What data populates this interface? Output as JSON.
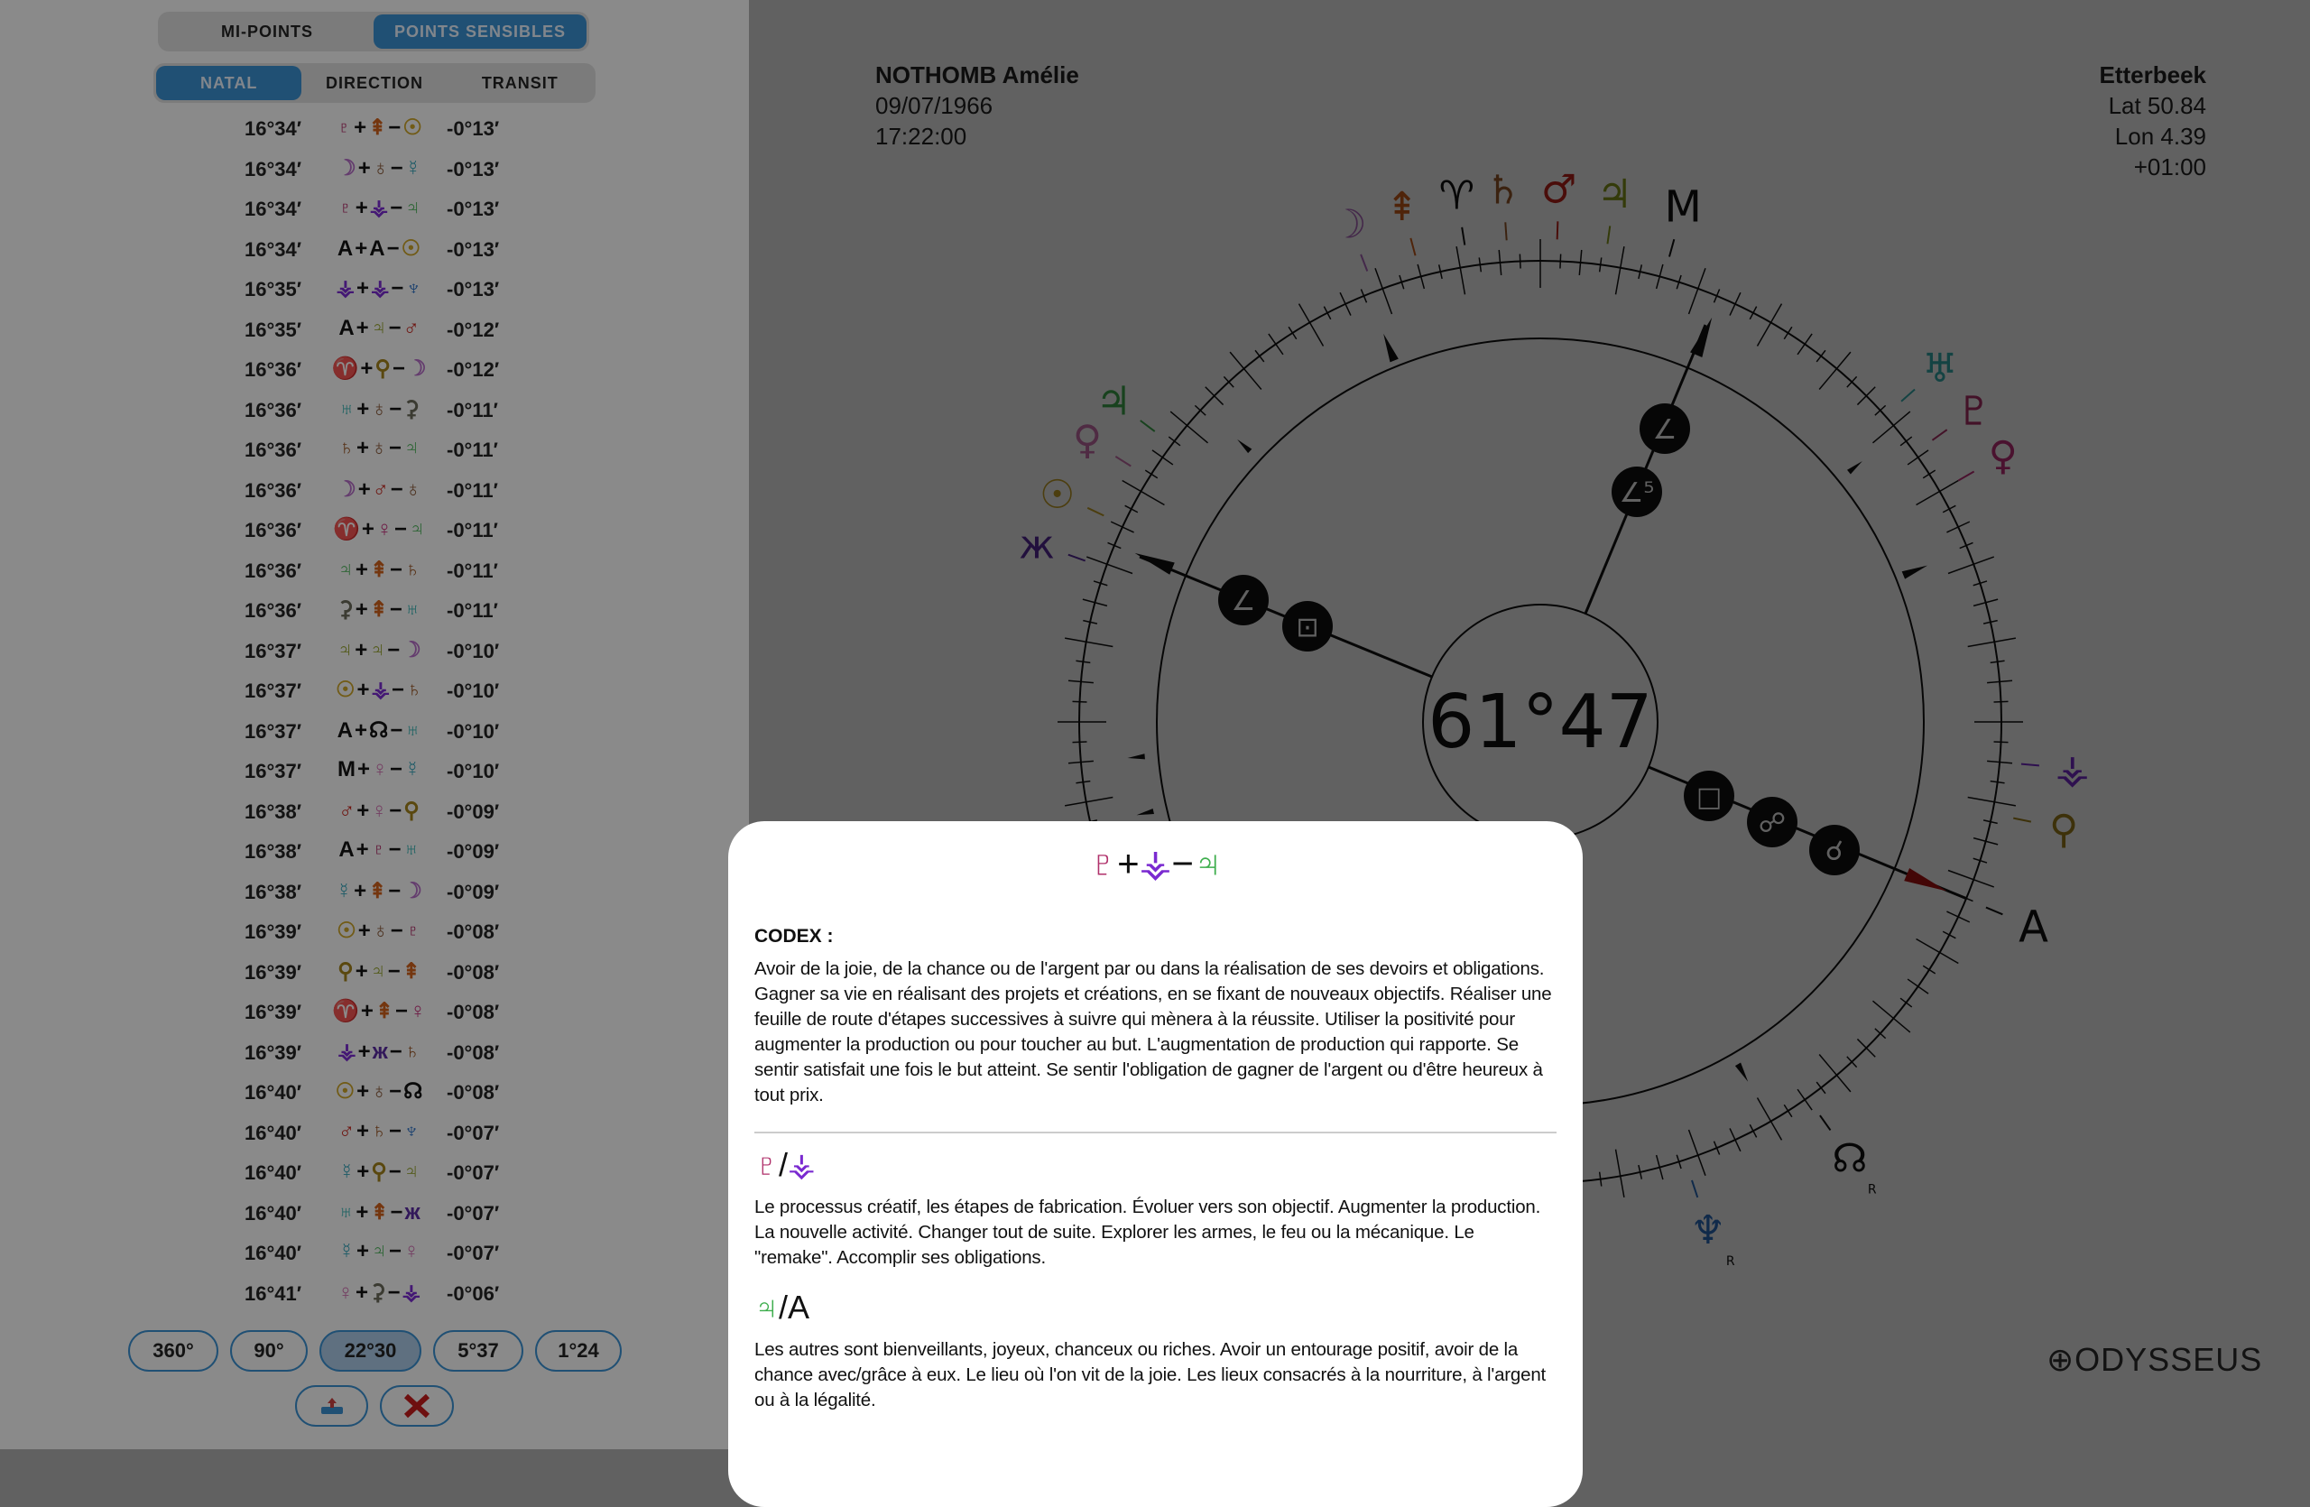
{
  "glyphs": {
    "sun": {
      "c": "☉",
      "color": "#c9a227"
    },
    "moon": {
      "c": "☽",
      "color": "#b36bc4"
    },
    "mercury": {
      "c": "☿",
      "color": "#35a3b8"
    },
    "venus": {
      "c": "♀",
      "color": "#c4307c"
    },
    "mars": {
      "c": "♂",
      "color": "#c4231b"
    },
    "jupiter": {
      "c": "♃",
      "color": "#3fae4e"
    },
    "saturn": {
      "c": "♄",
      "color": "#9c5a2a"
    },
    "uranus": {
      "c": "♅",
      "color": "#35b0b0"
    },
    "neptune": {
      "c": "♆",
      "color": "#2a6fc4"
    },
    "pluto": {
      "c": "♇",
      "color": "#b0306a"
    },
    "node": {
      "c": "☊",
      "color": "#111111"
    },
    "asc": {
      "c": "A",
      "color": "#111111"
    },
    "mc": {
      "c": "M",
      "color": "#111111"
    },
    "cupido": {
      "c": "ж",
      "color": "#5a2aa0"
    },
    "hades": {
      "c": "♁",
      "color": "#8a5a3a"
    },
    "zeus": {
      "c": "⇞",
      "color": "#d0601a"
    },
    "kronos": {
      "c": "♃",
      "color": "#8a9a1a"
    },
    "apollon": {
      "c": "⚳",
      "color": "#6a6a5a"
    },
    "admetos": {
      "c": "♀",
      "color": "#d070b0"
    },
    "vulkanus": {
      "c": "♈",
      "color": "#111111"
    },
    "poseidon": {
      "c": "⚶",
      "color": "#7a2ad0"
    },
    "transpluto": {
      "c": "⚲",
      "color": "#a0801a"
    }
  },
  "tabs_top": [
    "MI-POINTS",
    "POINTS SENSIBLES"
  ],
  "tabs_mode": [
    "NATAL",
    "DIRECTION",
    "TRANSIT"
  ],
  "rows": [
    {
      "pos": "16°34′",
      "a": "pluto",
      "b": "zeus",
      "c": "sun",
      "diff": "-0°13′"
    },
    {
      "pos": "16°34′",
      "a": "moon",
      "b": "hades",
      "c": "mercury",
      "diff": "-0°13′"
    },
    {
      "pos": "16°34′",
      "a": "pluto",
      "b": "poseidon",
      "c": "jupiter",
      "diff": "-0°13′"
    },
    {
      "pos": "16°34′",
      "a": "asc",
      "b": "asc",
      "c": "sun",
      "diff": "-0°13′"
    },
    {
      "pos": "16°35′",
      "a": "poseidon",
      "b": "poseidon",
      "c": "neptune",
      "diff": "-0°13′"
    },
    {
      "pos": "16°35′",
      "a": "asc",
      "b": "kronos",
      "c": "mars",
      "diff": "-0°12′"
    },
    {
      "pos": "16°36′",
      "a": "vulkanus",
      "b": "transpluto",
      "c": "moon",
      "diff": "-0°12′"
    },
    {
      "pos": "16°36′",
      "a": "uranus",
      "b": "hades",
      "c": "apollon",
      "diff": "-0°11′"
    },
    {
      "pos": "16°36′",
      "a": "saturn",
      "b": "hades",
      "c": "jupiter",
      "diff": "-0°11′"
    },
    {
      "pos": "16°36′",
      "a": "moon",
      "b": "mars",
      "c": "hades",
      "diff": "-0°11′"
    },
    {
      "pos": "16°36′",
      "a": "vulkanus",
      "b": "venus",
      "c": "jupiter",
      "diff": "-0°11′"
    },
    {
      "pos": "16°36′",
      "a": "jupiter",
      "b": "zeus",
      "c": "saturn",
      "diff": "-0°11′"
    },
    {
      "pos": "16°36′",
      "a": "apollon",
      "b": "zeus",
      "c": "uranus",
      "diff": "-0°11′"
    },
    {
      "pos": "16°37′",
      "a": "kronos",
      "b": "kronos",
      "c": "moon",
      "diff": "-0°10′"
    },
    {
      "pos": "16°37′",
      "a": "sun",
      "b": "poseidon",
      "c": "saturn",
      "diff": "-0°10′"
    },
    {
      "pos": "16°37′",
      "a": "asc",
      "b": "node",
      "c": "uranus",
      "diff": "-0°10′"
    },
    {
      "pos": "16°37′",
      "a": "mc",
      "b": "admetos",
      "c": "mercury",
      "diff": "-0°10′"
    },
    {
      "pos": "16°38′",
      "a": "mars",
      "b": "admetos",
      "c": "transpluto",
      "diff": "-0°09′"
    },
    {
      "pos": "16°38′",
      "a": "asc",
      "b": "pluto",
      "c": "uranus",
      "diff": "-0°09′"
    },
    {
      "pos": "16°38′",
      "a": "mercury",
      "b": "zeus",
      "c": "moon",
      "diff": "-0°09′"
    },
    {
      "pos": "16°39′",
      "a": "sun",
      "b": "hades",
      "c": "pluto",
      "diff": "-0°08′"
    },
    {
      "pos": "16°39′",
      "a": "transpluto",
      "b": "kronos",
      "c": "zeus",
      "diff": "-0°08′"
    },
    {
      "pos": "16°39′",
      "a": "vulkanus",
      "b": "zeus",
      "c": "venus",
      "diff": "-0°08′"
    },
    {
      "pos": "16°39′",
      "a": "poseidon",
      "b": "cupido",
      "c": "saturn",
      "diff": "-0°08′"
    },
    {
      "pos": "16°40′",
      "a": "sun",
      "b": "hades",
      "c": "node",
      "diff": "-0°08′"
    },
    {
      "pos": "16°40′",
      "a": "mars",
      "b": "saturn",
      "c": "neptune",
      "diff": "-0°07′"
    },
    {
      "pos": "16°40′",
      "a": "mercury",
      "b": "transpluto",
      "c": "kronos",
      "diff": "-0°07′"
    },
    {
      "pos": "16°40′",
      "a": "uranus",
      "b": "zeus",
      "c": "cupido",
      "diff": "-0°07′"
    },
    {
      "pos": "16°40′",
      "a": "mercury",
      "b": "jupiter",
      "c": "admetos",
      "diff": "-0°07′"
    },
    {
      "pos": "16°41′",
      "a": "admetos",
      "b": "apollon",
      "c": "poseidon",
      "diff": "-0°06′"
    }
  ],
  "orb_buttons": [
    "360°",
    "90°",
    "22°30",
    "5°37",
    "1°24"
  ],
  "orb_selected": "22°30",
  "action_icons": [
    "export-icon",
    "close-icon"
  ],
  "close_color": "#c41a1a",
  "header": {
    "name": "NOTHOMB Amélie",
    "date": "09/07/1966",
    "time": "17:22:00",
    "place": "Etterbeek",
    "lat": "Lat 50.84",
    "lon": "Lon 4.39",
    "tz": "+01:00"
  },
  "chart": {
    "center_value": "61°47",
    "planets": [
      "moon",
      "zeus",
      "vulkanus",
      "saturn",
      "mars",
      "kronos",
      "mc",
      "uranus",
      "pluto",
      "venus",
      "poseidon",
      "transpluto",
      "asc",
      "node",
      "neptune",
      "cupido",
      "sun",
      "admetos",
      "jupiter"
    ],
    "retrograde_label": "R",
    "aspects": [
      "∠",
      "∠⁵",
      "∠",
      "⊡",
      "□",
      "☍",
      "☌"
    ]
  },
  "logo": "ODYSSEUS",
  "popup": {
    "formula": {
      "a": "pluto",
      "b": "poseidon",
      "c": "jupiter"
    },
    "codex_label": "CODEX :",
    "codex_text": "Avoir de la joie, de la chance ou de l'argent par ou dans la réalisation de ses devoirs et obligations. Gagner sa vie en réalisant des projets et créations, en se fixant de nouveaux objectifs. Réaliser une feuille de route d'étapes successives à suivre qui mènera à la réussite. Utiliser la positivité pour augmenter la production ou pour toucher au but. L'augmentation de production qui rapporte. Se sentir satisfait une fois le but atteint. Se sentir l'obligation de gagner de l'argent ou d'être heureux à tout prix.",
    "sections": [
      {
        "a": "pluto",
        "b": "poseidon",
        "text": "Le processus créatif, les étapes de fabrication. Évoluer vers son objectif. Augmenter la production. La nouvelle activité. Changer tout de suite. Explorer les armes, le feu ou la mécanique. Le \"remake\". Accomplir ses obligations."
      },
      {
        "a": "jupiter",
        "b": "asc",
        "text": "Les autres sont bienveillants, joyeux, chanceux ou riches. Avoir un entourage positif, avoir de la chance avec/grâce à eux. Le lieu où l'on vit de la joie. Les lieux consacrés à la nourriture, à l'argent ou à la légalité."
      }
    ]
  }
}
